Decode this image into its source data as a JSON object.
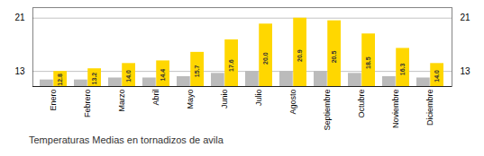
{
  "chart_data": {
    "type": "bar",
    "title": "Temperaturas Medias en tornadizos de avila",
    "categories": [
      "Enero",
      "Febrero",
      "Marzo",
      "Abril",
      "Mayo",
      "Junio",
      "Julio",
      "Agosto",
      "Septiembre",
      "Octubre",
      "Noviembre",
      "Diciembre"
    ],
    "series": [
      {
        "color": "#BBBBBB",
        "values": [
          11.5,
          11.5,
          11.8,
          11.8,
          12.0,
          12.5,
          12.8,
          12.8,
          12.8,
          12.5,
          12.0,
          11.8
        ]
      },
      {
        "color": "#FFD700",
        "values": [
          12.8,
          13.2,
          14.0,
          14.4,
          15.7,
          17.6,
          20.0,
          20.9,
          20.5,
          18.5,
          16.3,
          14.0
        ],
        "data_labels": true,
        "value_labels": [
          "12.8",
          "13.2",
          "14.0",
          "14.4",
          "15.7",
          "17.6",
          "20.0",
          "20.9",
          "20.5",
          "18.5",
          "16.3",
          "14.0"
        ]
      }
    ],
    "ylim": [
      10.5,
      22.5
    ],
    "yticks": [
      12.8,
      20.9
    ],
    "grid": true
  }
}
